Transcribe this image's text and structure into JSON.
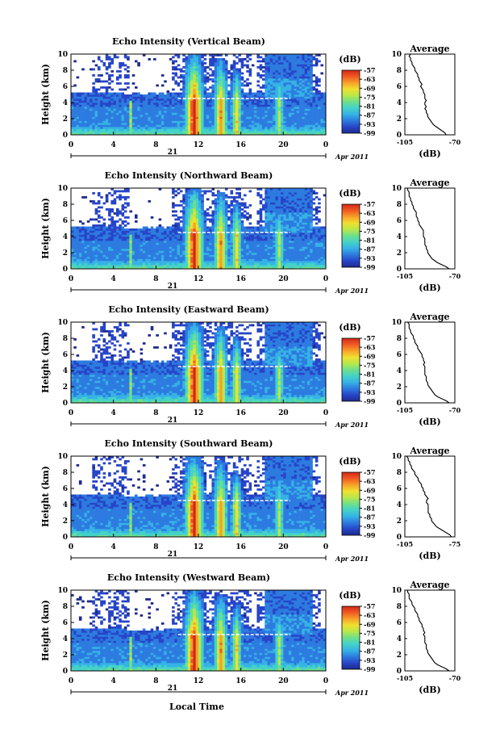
{
  "figure": {
    "xlabel": "Local Time",
    "colorbar_unit": "(dB)",
    "avg_title": "Average",
    "avg_xlabel": "(dB)",
    "ylabel": "Height (km)",
    "day_label": "21",
    "month_label": "Apr 2011",
    "colors": {
      "scale": [
        "#1e2a8c",
        "#2745c8",
        "#2d7be0",
        "#36b2e6",
        "#44d2c8",
        "#6ee08a",
        "#b8e84a",
        "#f0e030",
        "#f8a028",
        "#f05a22",
        "#d22818"
      ],
      "axis": "#000000"
    }
  },
  "chart_data": [
    {
      "type": "heatmap",
      "title": "Echo Intensity (Vertical Beam)",
      "x_ticks": [
        "0",
        "4",
        "8",
        "12",
        "16",
        "20",
        "0"
      ],
      "xlim": [
        0,
        24
      ],
      "y_ticks": [
        "0",
        "2",
        "4",
        "6",
        "8",
        "10"
      ],
      "ylim": [
        0,
        10
      ],
      "colorbar_ticks": [
        "-57",
        "-63",
        "-69",
        "-75",
        "-81",
        "-87",
        "-93",
        "-99"
      ],
      "colorbar_range": [
        -99,
        -57
      ],
      "avg_x_ticks": [
        "-105",
        "-70"
      ],
      "avg_xlim": [
        -105,
        -70
      ],
      "avg_profile": {
        "height": [
          0,
          0.25,
          0.5,
          0.75,
          1,
          1.25,
          1.5,
          1.75,
          2,
          2.25,
          2.5,
          2.75,
          3,
          3.25,
          3.5,
          3.75,
          4,
          4.25,
          4.5,
          4.75,
          5,
          5.25,
          5.5,
          5.75,
          6,
          6.25,
          6.5,
          6.75,
          7,
          7.25,
          7.5,
          7.75,
          8,
          8.25,
          8.5,
          8.75,
          9,
          9.25,
          9.5,
          9.75,
          10
        ],
        "db": [
          -76,
          -77,
          -79,
          -81,
          -83,
          -85,
          -86,
          -87,
          -88,
          -89,
          -89,
          -90,
          -90,
          -91,
          -90,
          -91,
          -91,
          -90,
          -91,
          -91,
          -91,
          -92,
          -92,
          -93,
          -94,
          -93,
          -94,
          -95,
          -95,
          -96,
          -96,
          -97,
          -98,
          -98,
          -99,
          -100,
          -100,
          -101,
          -101,
          -102,
          -101
        ]
      }
    },
    {
      "type": "heatmap",
      "title": "Echo Intensity (Northward Beam)",
      "x_ticks": [
        "0",
        "4",
        "8",
        "12",
        "16",
        "20",
        "0"
      ],
      "xlim": [
        0,
        24
      ],
      "y_ticks": [
        "0",
        "2",
        "4",
        "6",
        "8",
        "10"
      ],
      "ylim": [
        0,
        10
      ],
      "colorbar_ticks": [
        "-57",
        "-63",
        "-69",
        "-75",
        "-81",
        "-87",
        "-93",
        "-99"
      ],
      "colorbar_range": [
        -99,
        -57
      ],
      "avg_x_ticks": [
        "-105",
        "-70"
      ],
      "avg_xlim": [
        -105,
        -70
      ],
      "avg_profile": {
        "height": [
          0,
          0.25,
          0.5,
          0.75,
          1,
          1.25,
          1.5,
          1.75,
          2,
          2.25,
          2.5,
          2.75,
          3,
          3.25,
          3.5,
          3.75,
          4,
          4.25,
          4.5,
          4.75,
          5,
          5.25,
          5.5,
          5.75,
          6,
          6.25,
          6.5,
          6.75,
          7,
          7.25,
          7.5,
          7.75,
          8,
          8.25,
          8.5,
          8.75,
          9,
          9.25,
          9.5,
          9.75,
          10
        ],
        "db": [
          -74,
          -76,
          -79,
          -82,
          -84,
          -86,
          -87,
          -88,
          -89,
          -89,
          -90,
          -90,
          -91,
          -91,
          -91,
          -91,
          -92,
          -92,
          -92,
          -92,
          -93,
          -94,
          -95,
          -95,
          -96,
          -96,
          -97,
          -97,
          -97,
          -98,
          -99,
          -99,
          -100,
          -100,
          -101,
          -101,
          -102,
          -102,
          -102,
          -103,
          -103
        ]
      }
    },
    {
      "type": "heatmap",
      "title": "Echo Intensity (Eastward Beam)",
      "x_ticks": [
        "0",
        "4",
        "8",
        "12",
        "16",
        "20",
        "0"
      ],
      "xlim": [
        0,
        24
      ],
      "y_ticks": [
        "0",
        "2",
        "4",
        "6",
        "8",
        "10"
      ],
      "ylim": [
        0,
        10
      ],
      "colorbar_ticks": [
        "-57",
        "-63",
        "-69",
        "-75",
        "-81",
        "-87",
        "-93",
        "-99"
      ],
      "colorbar_range": [
        -99,
        -57
      ],
      "avg_x_ticks": [
        "-105",
        "-70"
      ],
      "avg_xlim": [
        -105,
        -70
      ],
      "avg_profile": {
        "height": [
          0,
          0.25,
          0.5,
          0.75,
          1,
          1.25,
          1.5,
          1.75,
          2,
          2.25,
          2.5,
          2.75,
          3,
          3.25,
          3.5,
          3.75,
          4,
          4.25,
          4.5,
          4.75,
          5,
          5.25,
          5.5,
          5.75,
          6,
          6.25,
          6.5,
          6.75,
          7,
          7.25,
          7.5,
          7.75,
          8,
          8.25,
          8.5,
          8.75,
          9,
          9.25,
          9.5,
          9.75,
          10
        ],
        "db": [
          -74,
          -76,
          -79,
          -82,
          -84,
          -85,
          -86,
          -87,
          -88,
          -89,
          -89,
          -90,
          -90,
          -90,
          -91,
          -91,
          -91,
          -91,
          -91,
          -92,
          -91,
          -92,
          -92,
          -93,
          -93,
          -94,
          -95,
          -96,
          -96,
          -97,
          -98,
          -98,
          -99,
          -99,
          -100,
          -101,
          -101,
          -102,
          -102,
          -102,
          -103
        ]
      }
    },
    {
      "type": "heatmap",
      "title": "Echo Intensity (Southward Beam)",
      "x_ticks": [
        "0",
        "4",
        "8",
        "12",
        "16",
        "20",
        "0"
      ],
      "xlim": [
        0,
        24
      ],
      "y_ticks": [
        "0",
        "2",
        "4",
        "6",
        "8",
        "10"
      ],
      "ylim": [
        0,
        10
      ],
      "colorbar_ticks": [
        "-57",
        "-63",
        "-69",
        "-75",
        "-81",
        "-87",
        "-93",
        "-99"
      ],
      "colorbar_range": [
        -99,
        -57
      ],
      "avg_x_ticks": [
        "-105",
        "-75"
      ],
      "avg_xlim": [
        -105,
        -75
      ],
      "avg_profile": {
        "height": [
          0,
          0.25,
          0.5,
          0.75,
          1,
          1.25,
          1.5,
          1.75,
          2,
          2.25,
          2.5,
          2.75,
          3,
          3.25,
          3.5,
          3.75,
          4,
          4.25,
          4.5,
          4.75,
          5,
          5.25,
          5.5,
          5.75,
          6,
          6.25,
          6.5,
          6.75,
          7,
          7.25,
          7.5,
          7.75,
          8,
          8.25,
          8.5,
          8.75,
          9,
          9.25,
          9.5,
          9.75,
          10
        ],
        "db": [
          -77,
          -78,
          -80,
          -82,
          -84,
          -86,
          -87,
          -88,
          -89,
          -89,
          -90,
          -90,
          -91,
          -91,
          -91,
          -91,
          -91,
          -92,
          -92,
          -91,
          -92,
          -93,
          -93,
          -94,
          -94,
          -95,
          -95,
          -96,
          -97,
          -97,
          -98,
          -99,
          -99,
          -100,
          -101,
          -101,
          -102,
          -102,
          -103,
          -103,
          -104
        ]
      }
    },
    {
      "type": "heatmap",
      "title": "Echo Intensity (Westward Beam)",
      "x_ticks": [
        "0",
        "4",
        "8",
        "12",
        "16",
        "20",
        "0"
      ],
      "xlim": [
        0,
        24
      ],
      "y_ticks": [
        "0",
        "2",
        "4",
        "6",
        "8",
        "10"
      ],
      "ylim": [
        0,
        10
      ],
      "colorbar_ticks": [
        "-57",
        "-63",
        "-69",
        "-75",
        "-81",
        "-87",
        "-93",
        "-99"
      ],
      "colorbar_range": [
        -99,
        -57
      ],
      "avg_x_ticks": [
        "-105",
        "-70"
      ],
      "avg_xlim": [
        -105,
        -70
      ],
      "avg_profile": {
        "height": [
          0,
          0.25,
          0.5,
          0.75,
          1,
          1.25,
          1.5,
          1.75,
          2,
          2.25,
          2.5,
          2.75,
          3,
          3.25,
          3.5,
          3.75,
          4,
          4.25,
          4.5,
          4.75,
          5,
          5.25,
          5.5,
          5.75,
          6,
          6.25,
          6.5,
          6.75,
          7,
          7.25,
          7.5,
          7.75,
          8,
          8.25,
          8.5,
          8.75,
          9,
          9.25,
          9.5,
          9.75,
          10
        ],
        "db": [
          -74,
          -76,
          -79,
          -82,
          -84,
          -85,
          -86,
          -87,
          -88,
          -89,
          -89,
          -90,
          -90,
          -90,
          -91,
          -91,
          -91,
          -91,
          -92,
          -91,
          -92,
          -92,
          -93,
          -93,
          -94,
          -95,
          -95,
          -96,
          -96,
          -97,
          -98,
          -98,
          -99,
          -100,
          -100,
          -101,
          -102,
          -102,
          -102,
          -103,
          -103
        ]
      }
    }
  ]
}
